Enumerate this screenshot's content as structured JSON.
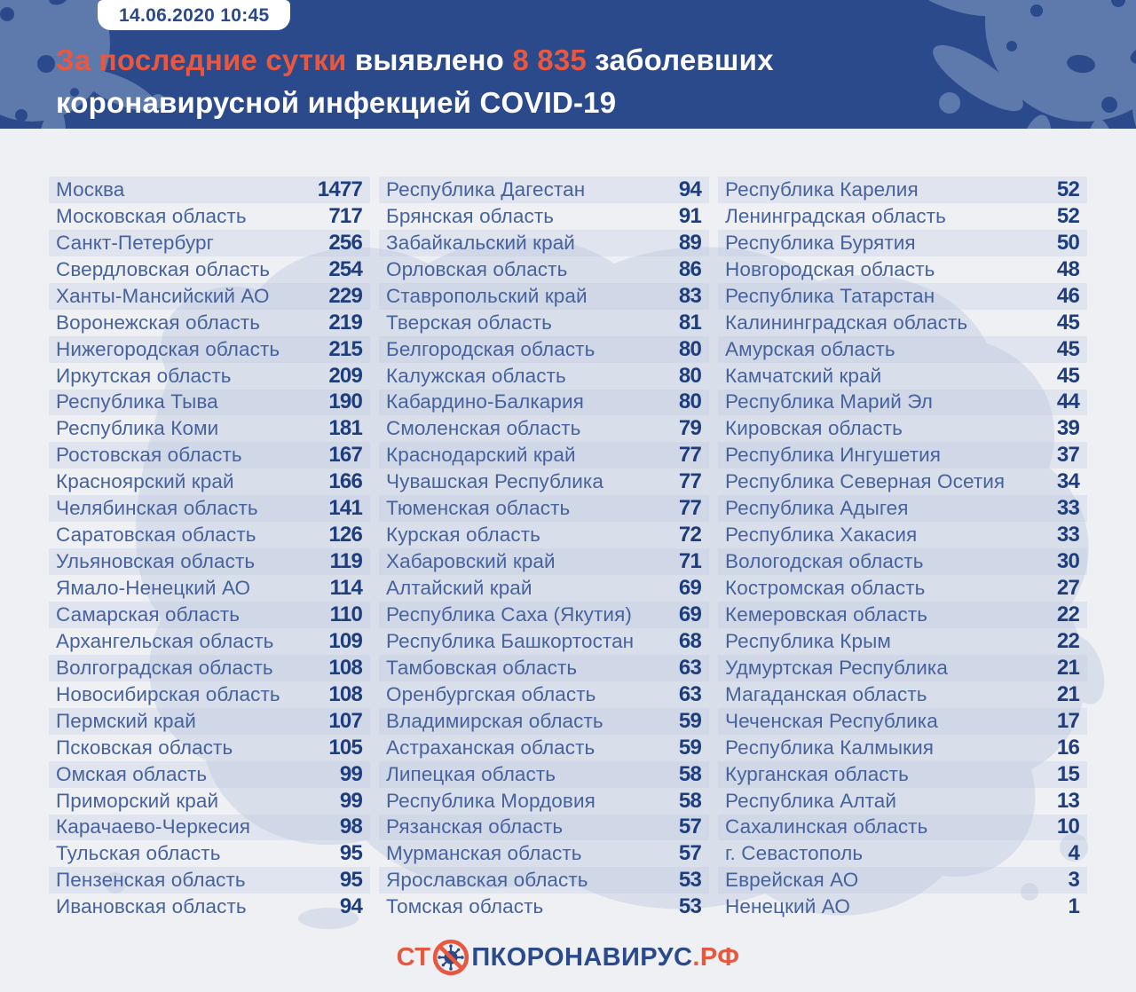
{
  "header": {
    "date_badge": "14.06.2020 10:45",
    "title_accent": "За последние сутки",
    "title_mid": " выявлено ",
    "title_number": "8 835",
    "title_tail": " заболевших",
    "title_line2": "коронавирусной инфекцией COVID-19"
  },
  "footer": {
    "logo_prefix": "СТ",
    "logo_mid": "ПКОРОНАВИРУС",
    "logo_suffix": ".РФ"
  },
  "colors": {
    "header_bg": "#2b4a8b",
    "header_splash": "#5e79ac",
    "accent_orange": "#e8573f",
    "region_text": "#47629c",
    "value_text": "#1e3d7d",
    "page_bg": "#eff0f3",
    "stripe": "#e2e7ef",
    "map_watermark": "#d9dfea",
    "badge_bg": "#ffffff"
  },
  "chart_data": {
    "type": "table",
    "title": "За последние сутки выявлено 8 835 заболевших коронавирусной инфекцией COVID-19",
    "date": "14.06.2020 10:45",
    "total_new_cases": 8835,
    "columns": [
      [
        {
          "region": "Москва",
          "value": 1477
        },
        {
          "region": "Московская область",
          "value": 717
        },
        {
          "region": "Санкт-Петербург",
          "value": 256
        },
        {
          "region": "Свердловская область",
          "value": 254
        },
        {
          "region": "Ханты-Мансийский АО",
          "value": 229
        },
        {
          "region": "Воронежская область",
          "value": 219
        },
        {
          "region": "Нижегородская область",
          "value": 215
        },
        {
          "region": "Иркутская область",
          "value": 209
        },
        {
          "region": "Республика Тыва",
          "value": 190
        },
        {
          "region": "Республика Коми",
          "value": 181
        },
        {
          "region": "Ростовская область",
          "value": 167
        },
        {
          "region": "Красноярский край",
          "value": 166
        },
        {
          "region": "Челябинская область",
          "value": 141
        },
        {
          "region": "Саратовская область",
          "value": 126
        },
        {
          "region": "Ульяновская область",
          "value": 119
        },
        {
          "region": "Ямало-Ненецкий АО",
          "value": 114
        },
        {
          "region": "Самарская область",
          "value": 110
        },
        {
          "region": "Архангельская область",
          "value": 109
        },
        {
          "region": "Волгоградская область",
          "value": 108
        },
        {
          "region": "Новосибирская область",
          "value": 108
        },
        {
          "region": "Пермский край",
          "value": 107
        },
        {
          "region": "Псковская область",
          "value": 105
        },
        {
          "region": "Омская область",
          "value": 99
        },
        {
          "region": "Приморский край",
          "value": 99
        },
        {
          "region": "Карачаево-Черкесия",
          "value": 98
        },
        {
          "region": "Тульская область",
          "value": 95
        },
        {
          "region": "Пензенская область",
          "value": 95
        },
        {
          "region": "Ивановская область",
          "value": 94
        }
      ],
      [
        {
          "region": "Республика Дагестан",
          "value": 94
        },
        {
          "region": "Брянская область",
          "value": 91
        },
        {
          "region": "Забайкальский край",
          "value": 89
        },
        {
          "region": "Орловская область",
          "value": 86
        },
        {
          "region": "Ставропольский край",
          "value": 83
        },
        {
          "region": "Тверская область",
          "value": 81
        },
        {
          "region": "Белгородская область",
          "value": 80
        },
        {
          "region": "Калужская область",
          "value": 80
        },
        {
          "region": "Кабардино-Балкария",
          "value": 80
        },
        {
          "region": "Смоленская область",
          "value": 79
        },
        {
          "region": "Краснодарский край",
          "value": 77
        },
        {
          "region": "Чувашская Республика",
          "value": 77
        },
        {
          "region": "Тюменская область",
          "value": 77
        },
        {
          "region": "Курская область",
          "value": 72
        },
        {
          "region": "Хабаровский край",
          "value": 71
        },
        {
          "region": "Алтайский край",
          "value": 69
        },
        {
          "region": "Республика Саха (Якутия)",
          "value": 69
        },
        {
          "region": "Республика Башкортостан",
          "value": 68
        },
        {
          "region": "Тамбовская область",
          "value": 63
        },
        {
          "region": "Оренбургская область",
          "value": 63
        },
        {
          "region": "Владимирская область",
          "value": 59
        },
        {
          "region": "Астраханская область",
          "value": 59
        },
        {
          "region": "Липецкая область",
          "value": 58
        },
        {
          "region": "Республика Мордовия",
          "value": 58
        },
        {
          "region": "Рязанская область",
          "value": 57
        },
        {
          "region": "Мурманская область",
          "value": 57
        },
        {
          "region": "Ярославская область",
          "value": 53
        },
        {
          "region": "Томская область",
          "value": 53
        }
      ],
      [
        {
          "region": "Республика Карелия",
          "value": 52
        },
        {
          "region": "Ленинградская область",
          "value": 52
        },
        {
          "region": "Республика Бурятия",
          "value": 50
        },
        {
          "region": "Новгородская область",
          "value": 48
        },
        {
          "region": "Республика Татарстан",
          "value": 46
        },
        {
          "region": "Калининградская область",
          "value": 45
        },
        {
          "region": "Амурская область",
          "value": 45
        },
        {
          "region": "Камчатский край",
          "value": 45
        },
        {
          "region": "Республика Марий Эл",
          "value": 44
        },
        {
          "region": "Кировская область",
          "value": 39
        },
        {
          "region": "Республика Ингушетия",
          "value": 37
        },
        {
          "region": "Республика Северная Осетия",
          "value": 34
        },
        {
          "region": "Республика Адыгея",
          "value": 33
        },
        {
          "region": "Республика Хакасия",
          "value": 33
        },
        {
          "region": "Вологодская область",
          "value": 30
        },
        {
          "region": "Костромская область",
          "value": 27
        },
        {
          "region": "Кемеровская область",
          "value": 22
        },
        {
          "region": "Республика Крым",
          "value": 22
        },
        {
          "region": "Удмуртская Республика",
          "value": 21
        },
        {
          "region": "Магаданская область",
          "value": 21
        },
        {
          "region": "Чеченская Республика",
          "value": 17
        },
        {
          "region": "Республика Калмыкия",
          "value": 16
        },
        {
          "region": "Курганская область",
          "value": 15
        },
        {
          "region": "Республика Алтай",
          "value": 13
        },
        {
          "region": "Сахалинская область",
          "value": 10
        },
        {
          "region": "г. Севастополь",
          "value": 4
        },
        {
          "region": "Еврейская АО",
          "value": 3
        },
        {
          "region": "Ненецкий АО",
          "value": 1
        }
      ]
    ]
  }
}
